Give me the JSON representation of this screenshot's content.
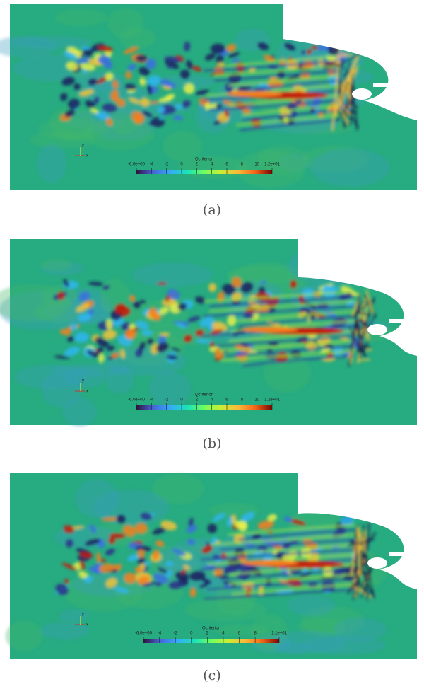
{
  "panels": [
    {
      "caption": "(a)",
      "triad": [
        "y",
        "x"
      ],
      "colorbar": {
        "title": "Qcriterion",
        "clim": [
          -6,
          12
        ],
        "ticks": [
          {
            "value": -6,
            "label": "-6.0e+00"
          },
          -4,
          -2,
          0,
          2,
          4,
          6,
          8,
          10,
          {
            "value": 12,
            "label": "1.2e+01"
          }
        ]
      }
    },
    {
      "caption": "(b)",
      "triad": [
        "y",
        "x"
      ],
      "colorbar": {
        "title": "Qcriterion",
        "clim": [
          -6,
          12
        ],
        "ticks": [
          {
            "value": -6,
            "label": "-6.0e+00"
          },
          -4,
          -2,
          0,
          2,
          4,
          6,
          8,
          10,
          {
            "value": 12,
            "label": "1.2e+01"
          }
        ]
      }
    },
    {
      "caption": "(c)",
      "triad": [
        "y",
        "x"
      ],
      "colorbar": {
        "title": "Qcriterion",
        "clim": [
          -6,
          11
        ],
        "ticks": [
          {
            "value": -6,
            "label": "-6.0e+00"
          },
          -4,
          -2,
          0,
          2,
          4,
          6,
          8,
          {
            "value": 11,
            "label": "1.1e+01"
          }
        ]
      }
    }
  ]
}
